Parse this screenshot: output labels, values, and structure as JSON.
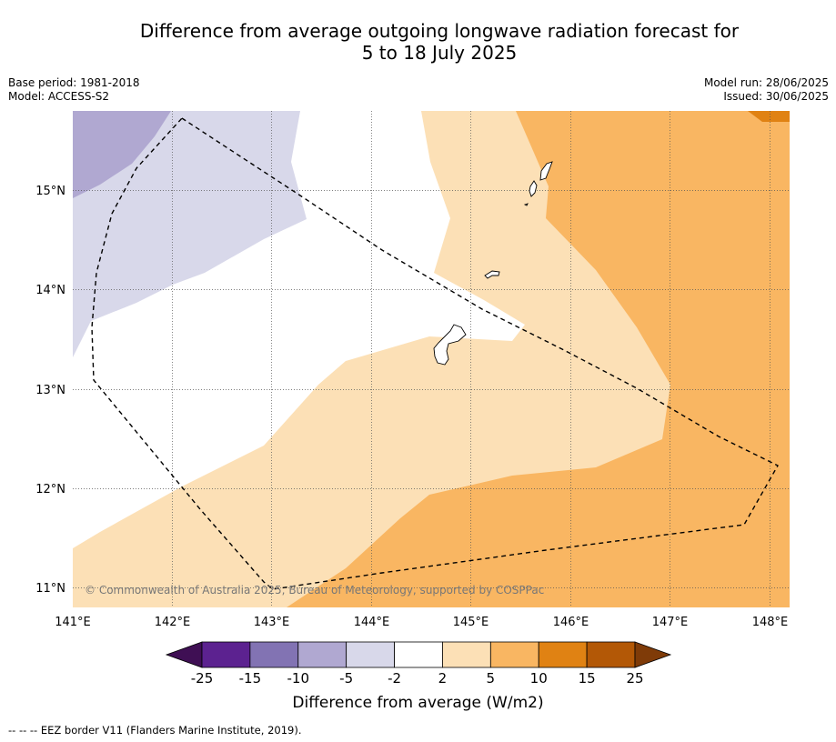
{
  "title_line1": "Difference from average outgoing longwave radiation forecast for",
  "title_line2": "5 to 18 July 2025",
  "base_period": "Base period: 1981-2018",
  "model": "Model: ACCESS-S2",
  "model_run": "Model run: 28/06/2025",
  "issued": "Issued: 30/06/2025",
  "copyright": "© Commonwealth of Australia 2025, Bureau of Meteorology, supported by COSPPac",
  "lon_labels": [
    "141°E",
    "142°E",
    "143°E",
    "144°E",
    "145°E",
    "146°E",
    "147°E",
    "148°E"
  ],
  "lat_labels": [
    "15°N",
    "14°N",
    "13°N",
    "12°N",
    "11°N"
  ],
  "colorbar": {
    "title": "Difference from average (W/m2)",
    "tick_labels": [
      "-25",
      "-15",
      "-10",
      "-5",
      "-2",
      "2",
      "5",
      "10",
      "15",
      "25"
    ],
    "colors": [
      "#3f0f54",
      "#5c2290",
      "#8273b3",
      "#b0a8d1",
      "#d8d8ea",
      "#ffffff",
      "#fce0b6",
      "#f9b662",
      "#e08213",
      "#b35806",
      "#7f3b08"
    ]
  },
  "footer": "--  --  -- EEZ border V11 (Flanders Marine Institute, 2019).",
  "legend_colors": {
    "neg_10_5": "#b0a8d1",
    "neg_5_2": "#d8d8ea",
    "pos_2_5": "#fce0b6",
    "pos_5_10": "#f9b662",
    "pos_10_15": "#e08213"
  }
}
